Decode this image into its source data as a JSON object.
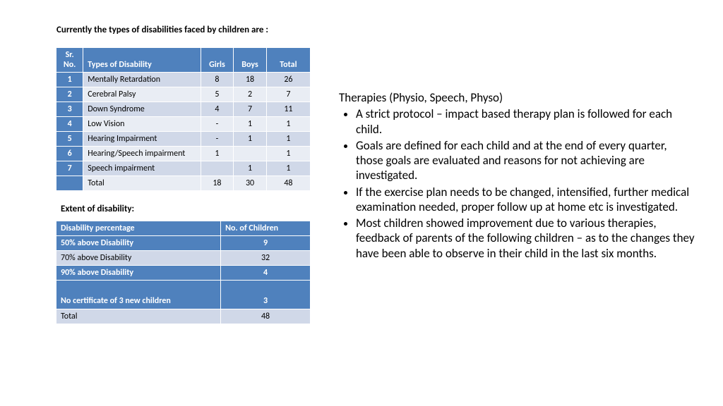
{
  "heading": "Currently the types of disabilities faced by children are :",
  "table1": {
    "headers": [
      "Sr. No.",
      "Types of Disability",
      "Girls",
      "Boys",
      "Total"
    ],
    "rows": [
      {
        "no": "1",
        "type": "Mentally Retardation",
        "girls": "8",
        "boys": "18",
        "total": "26",
        "cls": "rowa"
      },
      {
        "no": "2",
        "type": "Cerebral Palsy",
        "girls": "5",
        "boys": "2",
        "total": "7",
        "cls": "rowb"
      },
      {
        "no": "3",
        "type": "Down Syndrome",
        "girls": "4",
        "boys": "7",
        "total": "11",
        "cls": "rowa"
      },
      {
        "no": "4",
        "type": "Low Vision",
        "girls": "-",
        "boys": "1",
        "total": "1",
        "cls": "rowb"
      },
      {
        "no": "5",
        "type": "Hearing Impairment",
        "girls": "-",
        "boys": "1",
        "total": "1",
        "cls": "rowa"
      },
      {
        "no": "6",
        "type": "Hearing/Speech impairment",
        "girls": "1",
        "boys": "",
        "total": "1",
        "cls": "rowb"
      },
      {
        "no": "7",
        "type": "Speech impairment",
        "girls": "",
        "boys": "1",
        "total": "1",
        "cls": "rowa"
      },
      {
        "no": "",
        "type": "Total",
        "girls": "18",
        "boys": "30",
        "total": "48",
        "cls": "rowb"
      }
    ]
  },
  "subheading": "Extent of disability:",
  "table2": {
    "headers": [
      "Disability percentage",
      "No. of Children"
    ],
    "rows": [
      {
        "label": "50% above Disability",
        "val": "9",
        "cls": "hdrrow"
      },
      {
        "label": "70% above Disability",
        "val": "32",
        "cls": "rowa"
      },
      {
        "label": "90% above Disability",
        "val": "4",
        "cls": "hdrrow"
      },
      {
        "label": "No certificate of 3 new children",
        "val": "3",
        "cls": "hdrrow tallrow"
      },
      {
        "label": "Total",
        "val": "48",
        "cls": "rowa"
      }
    ]
  },
  "right": {
    "title": "Therapies (Physio, Speech, Physo)",
    "bullets": [
      "A strict protocol – impact based therapy plan is followed for each child.",
      "Goals are defined for each child and at the end of every quarter, those goals are evaluated and reasons for not achieving are investigated.",
      " If the exercise plan needs to be changed, intensified, further medical examination needed, proper follow up at home etc is investigated.",
      "Most children showed improvement due to various therapies, feedback of parents of the following children – as to the changes they have been able to observe in their child in the last six months."
    ]
  },
  "colors": {
    "header_bg": "#4f81bd",
    "row_a": "#d0d8e8",
    "row_b": "#e9edf4",
    "text": "#000000",
    "bg": "#ffffff"
  }
}
